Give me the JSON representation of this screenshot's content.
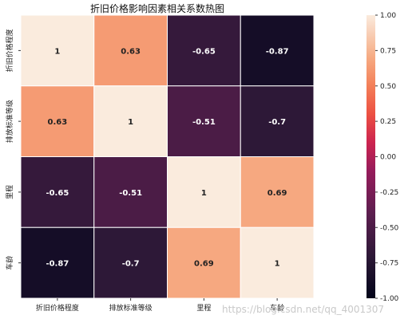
{
  "chart_data": {
    "type": "heatmap",
    "title": "折旧价格影响因素相关系数热图",
    "x_labels": [
      "折旧价格程度",
      "排放标准等级",
      "里程",
      "车龄"
    ],
    "y_labels": [
      "折旧价格程度",
      "排放标准等级",
      "里程",
      "车龄"
    ],
    "values": [
      [
        1,
        0.63,
        -0.65,
        -0.87
      ],
      [
        0.63,
        1,
        -0.51,
        -0.7
      ],
      [
        -0.65,
        -0.51,
        1,
        0.69
      ],
      [
        -0.87,
        -0.7,
        0.69,
        1
      ]
    ],
    "value_labels": [
      [
        "1",
        "0.63",
        "-0.65",
        "-0.87"
      ],
      [
        "0.63",
        "1",
        "-0.51",
        "-0.7"
      ],
      [
        "-0.65",
        "-0.51",
        "1",
        "0.69"
      ],
      [
        "-0.87",
        "-0.7",
        "0.69",
        "1"
      ]
    ],
    "colorbar": {
      "vmin": -1.0,
      "vmax": 1.0,
      "ticks": [
        "1.00",
        "0.75",
        "0.50",
        "0.25",
        "0.00",
        "-0.25",
        "-0.50",
        "-0.75",
        "-1.00"
      ],
      "tick_values": [
        1.0,
        0.75,
        0.5,
        0.25,
        0.0,
        -0.25,
        -0.5,
        -0.75,
        -1.0
      ],
      "colormap": "rocket"
    },
    "cell_border_color": "#ffffff"
  },
  "watermark": "https://blog.csdn.net/qq_4001307"
}
